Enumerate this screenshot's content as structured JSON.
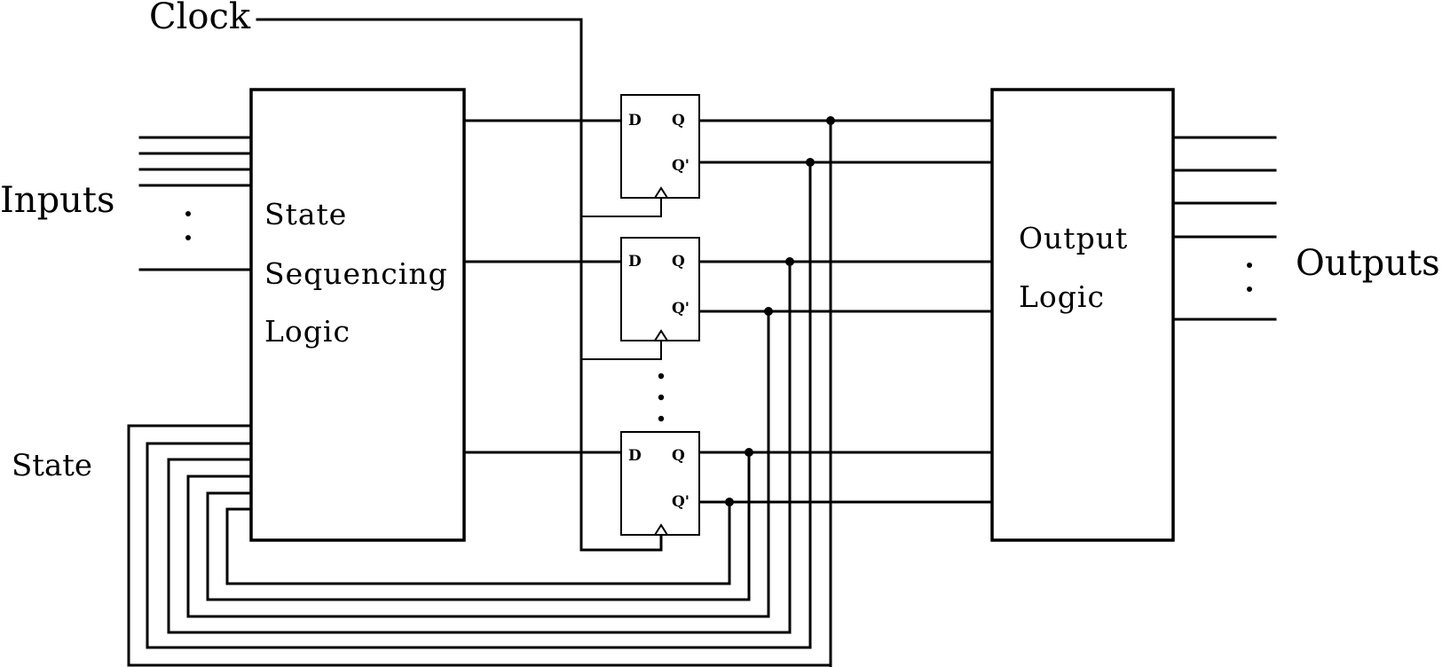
{
  "labels": {
    "clock": "Clock",
    "inputs": "Inputs",
    "state": "State",
    "outputs": "Outputs"
  },
  "state_sequencing_logic": {
    "lines": [
      "State",
      "Sequencing",
      "Logic"
    ]
  },
  "output_logic": {
    "lines": [
      "Output",
      "Logic"
    ]
  },
  "flip_flops": [
    {
      "d": "D",
      "q": "Q",
      "qn": "Q'"
    },
    {
      "d": "D",
      "q": "Q",
      "qn": "Q'"
    },
    {
      "d": "D",
      "q": "Q",
      "qn": "Q'"
    }
  ]
}
